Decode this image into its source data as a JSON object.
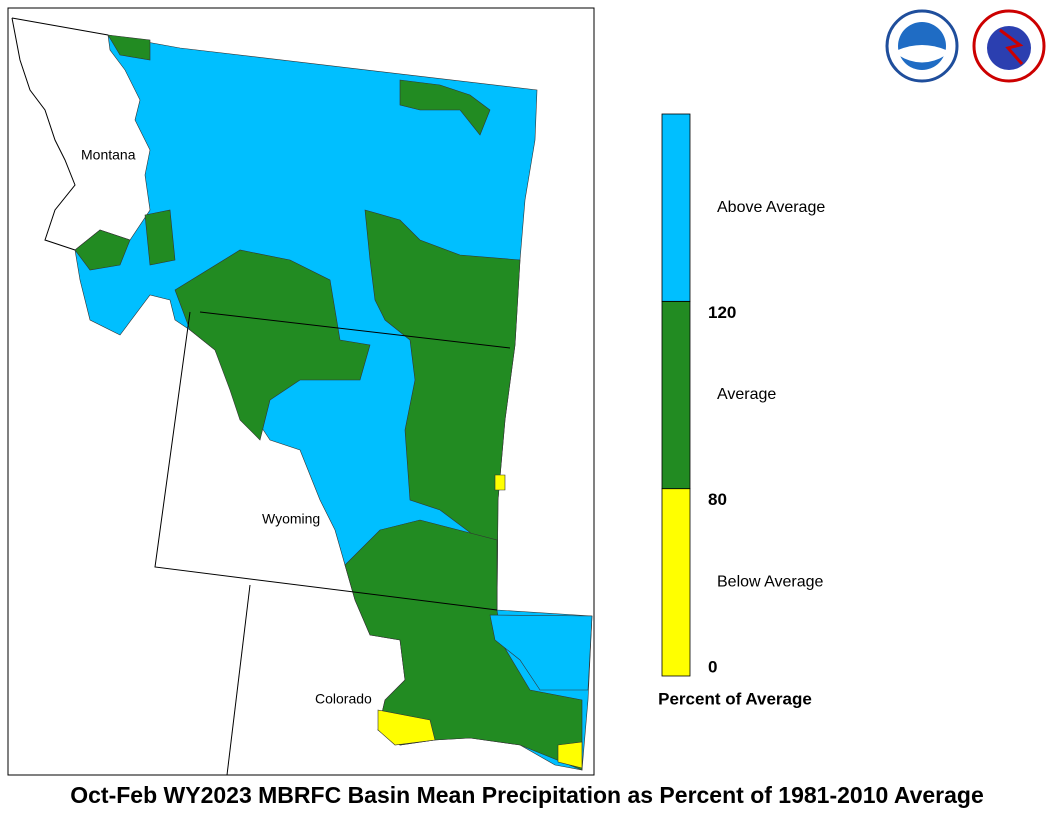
{
  "map": {
    "title": "Oct-Feb WY2023 MBRFC Basin Mean Precipitation as Percent of 1981-2010 Average",
    "states": [
      "Montana",
      "Wyoming",
      "Colorado"
    ],
    "legend": {
      "title": "Percent of Average",
      "ticks": [
        0,
        80,
        120
      ],
      "classes": [
        {
          "name": "Below Average",
          "color": "#ffff00"
        },
        {
          "name": "Average",
          "color": "#228b22"
        },
        {
          "name": "Above Average",
          "color": "#00bfff"
        }
      ]
    }
  }
}
